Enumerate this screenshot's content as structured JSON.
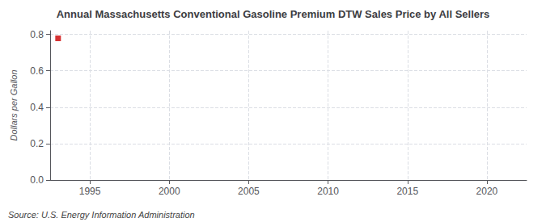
{
  "chart_data": {
    "type": "scatter",
    "title": "Annual Massachusetts Conventional Gasoline Premium DTW Sales Price by All Sellers",
    "ylabel": "Dollars per Gallon",
    "annotations": [
      "Source: U.S. Energy Information Administration"
    ],
    "x": [
      1993
    ],
    "values": [
      0.778
    ],
    "color": "#cc0000",
    "marker": "square",
    "xlim": [
      1992.5,
      2022.5
    ],
    "xticks": [
      1995,
      2000,
      2005,
      2010,
      2015,
      2020
    ],
    "ylim": [
      0.0,
      0.82
    ],
    "yticks": [
      {
        "value": 0.0,
        "label": "0.0"
      },
      0.2,
      0.4,
      0.6,
      0.8
    ],
    "grid": true
  }
}
